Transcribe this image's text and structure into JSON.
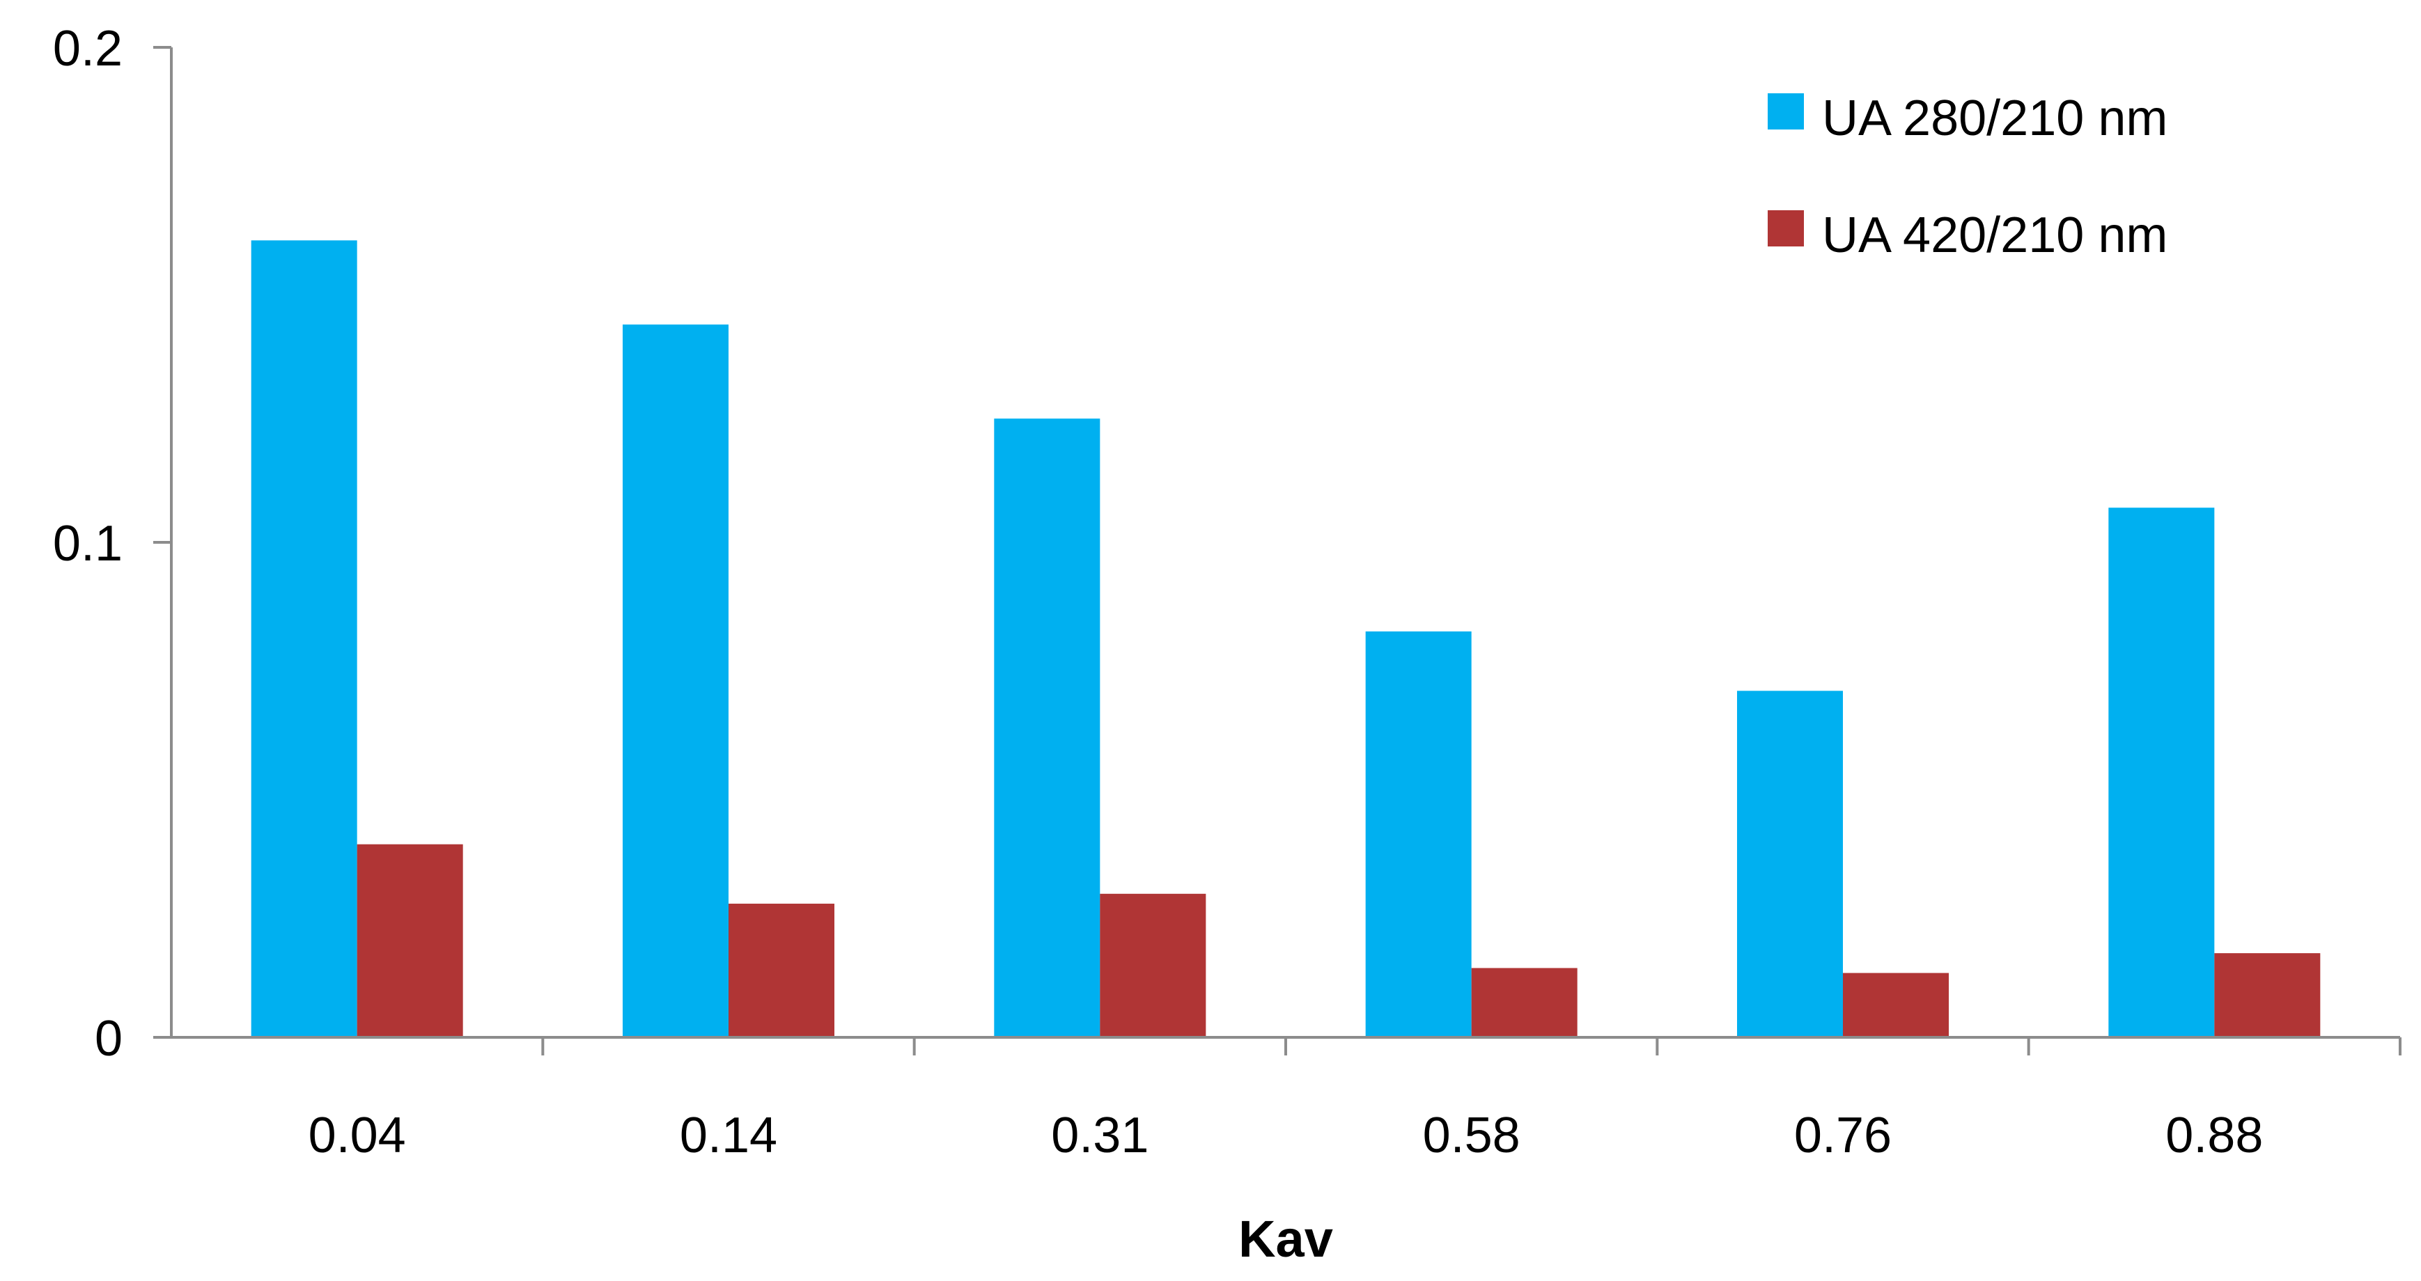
{
  "chart_data": {
    "type": "bar",
    "title": "",
    "xlabel": "Kav",
    "ylabel": "",
    "categories": [
      "0.04",
      "0.14",
      "0.31",
      "0.58",
      "0.76",
      "0.88"
    ],
    "series": [
      {
        "name": "UA 280/210 nm",
        "color": "#00b0f0",
        "values": [
          0.161,
          0.144,
          0.125,
          0.082,
          0.07,
          0.107
        ]
      },
      {
        "name": "UA 420/210 nm",
        "color": "#b03535",
        "values": [
          0.039,
          0.027,
          0.029,
          0.014,
          0.013,
          0.017
        ]
      }
    ],
    "ylim": [
      0,
      0.2
    ],
    "yticks": [
      "0",
      "0.1",
      "0.2"
    ],
    "grid": false,
    "legend_position": "top-right"
  }
}
